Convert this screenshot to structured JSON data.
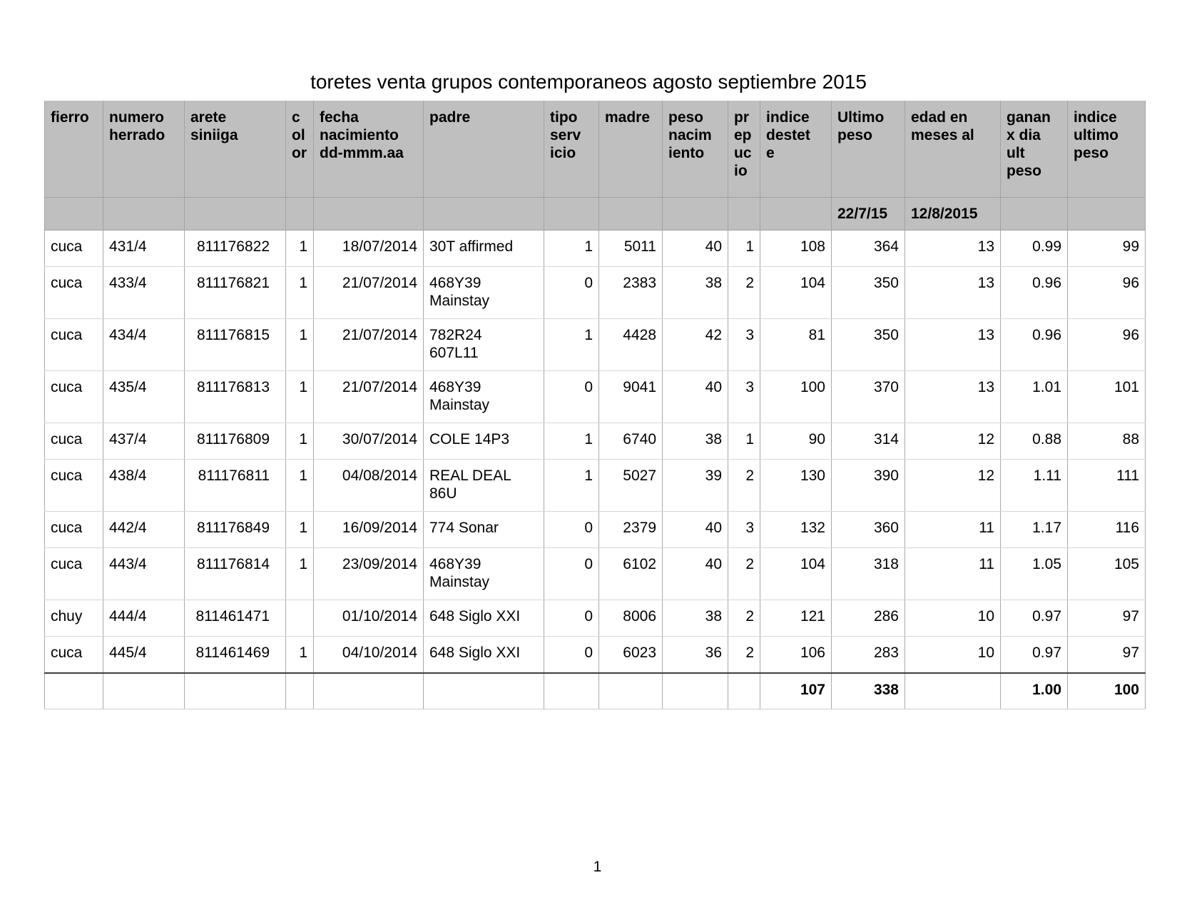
{
  "title": "toretes venta grupos contemporaneos agosto septiembre 2015",
  "page_number": "1",
  "colors": {
    "page_bg": "#ffffff",
    "header_bg": "#bfbfbf",
    "header_grid": "#a3a3a3",
    "body_vertical_grid": "#a9a9a9",
    "body_horizontal_grid": "#d6d6d6",
    "totals_rule": "#3f3f3f",
    "text": "#000000"
  },
  "table": {
    "columns": [
      {
        "key": "fierro",
        "label": "fierro"
      },
      {
        "key": "numero-herrado",
        "label": "numero\nherrado"
      },
      {
        "key": "arete-siniiga",
        "label": "arete\nsiniiga"
      },
      {
        "key": "color",
        "label": "c\nol\nor"
      },
      {
        "key": "fecha-nacimiento",
        "label": "fecha\nnacimiento\ndd-mmm.aa"
      },
      {
        "key": "padre",
        "label": "padre"
      },
      {
        "key": "tipo-servicio",
        "label": "tipo\nserv\nicio"
      },
      {
        "key": "madre",
        "label": "madre"
      },
      {
        "key": "peso-nacimiento",
        "label": "peso\nnacim\niento"
      },
      {
        "key": "prepucio",
        "label": "pr\nep\nuc\nio"
      },
      {
        "key": "indice-destete",
        "label": "indice\ndestet\ne"
      },
      {
        "key": "ultimo-peso",
        "label": "Ultimo\npeso"
      },
      {
        "key": "edad-meses",
        "label": "edad en\nmeses al"
      },
      {
        "key": "ganancia-dia",
        "label": "ganan\nx dia\nult\npeso"
      },
      {
        "key": "indice-ultimo",
        "label": "indice\nultimo\npeso"
      }
    ],
    "subheader": [
      "",
      "",
      "",
      "",
      "",
      "",
      "",
      "",
      "",
      "",
      "",
      "22/7/15",
      "12/8/2015",
      "",
      ""
    ],
    "rows": [
      [
        "cuca",
        "431/4",
        "811176822",
        "1",
        "18/07/2014",
        "30T affirmed",
        "1",
        "5011",
        "40",
        "1",
        "108",
        "364",
        "13",
        "0.99",
        "99"
      ],
      [
        "cuca",
        "433/4",
        "811176821",
        "1",
        "21/07/2014",
        "468Y39\nMainstay",
        "0",
        "2383",
        "38",
        "2",
        "104",
        "350",
        "13",
        "0.96",
        "96"
      ],
      [
        "cuca",
        "434/4",
        "811176815",
        "1",
        "21/07/2014",
        "782R24\n607L11",
        "1",
        "4428",
        "42",
        "3",
        "81",
        "350",
        "13",
        "0.96",
        "96"
      ],
      [
        "cuca",
        "435/4",
        "811176813",
        "1",
        "21/07/2014",
        "468Y39\nMainstay",
        "0",
        "9041",
        "40",
        "3",
        "100",
        "370",
        "13",
        "1.01",
        "101"
      ],
      [
        "cuca",
        "437/4",
        "811176809",
        "1",
        "30/07/2014",
        "COLE 14P3",
        "1",
        "6740",
        "38",
        "1",
        "90",
        "314",
        "12",
        "0.88",
        "88"
      ],
      [
        "cuca",
        "438/4",
        "811176811",
        "1",
        "04/08/2014",
        "REAL DEAL\n86U",
        "1",
        "5027",
        "39",
        "2",
        "130",
        "390",
        "12",
        "1.11",
        "111"
      ],
      [
        "cuca",
        "442/4",
        "811176849",
        "1",
        "16/09/2014",
        "774 Sonar",
        "0",
        "2379",
        "40",
        "3",
        "132",
        "360",
        "11",
        "1.17",
        "116"
      ],
      [
        "cuca",
        "443/4",
        "811176814",
        "1",
        "23/09/2014",
        "468Y39\nMainstay",
        "0",
        "6102",
        "40",
        "2",
        "104",
        "318",
        "11",
        "1.05",
        "105"
      ],
      [
        "chuy",
        "444/4",
        "811461471",
        "",
        "01/10/2014",
        "648 Siglo XXI",
        "0",
        "8006",
        "38",
        "2",
        "121",
        "286",
        "10",
        "0.97",
        "97"
      ],
      [
        "cuca",
        "445/4",
        "811461469",
        "1",
        "04/10/2014",
        "648 Siglo XXI",
        "0",
        "6023",
        "36",
        "2",
        "106",
        "283",
        "10",
        "0.97",
        "97"
      ]
    ],
    "totals": [
      "",
      "",
      "",
      "",
      "",
      "",
      "",
      "",
      "",
      "",
      "107",
      "338",
      "",
      "1.00",
      "100"
    ]
  }
}
